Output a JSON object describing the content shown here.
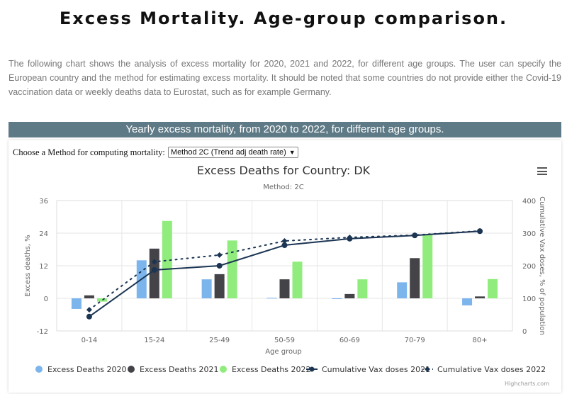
{
  "page": {
    "title": "Excess Mortality. Age-group comparison.",
    "intro": "The following chart shows the analysis of excess mortality for 2020, 2021 and 2022, for different age groups. The user can specify the European country and the method for estimating excess mortality. It should be noted that some countries do not provide either the Covid-19 vaccination data or weekly deaths data to Eurostat, such as for example Germany.",
    "banner": "Yearly excess mortality, from 2020 to 2022, for different age groups."
  },
  "controls": {
    "method_label": "Choose a Method for computing mortality:",
    "method_selected": "Method 2C (Trend adj death rate)",
    "menu_icon": "hamburger-menu-icon"
  },
  "credits": "Highcharts.com",
  "colors": {
    "series2020": "#7cb5ec",
    "series2021": "#434348",
    "series2022": "#90ed7d",
    "vax": "#1c3553"
  },
  "chart_data": {
    "type": "bar",
    "title": "Excess Deaths for Country: DK",
    "subtitle": "Method: 2C",
    "xlabel": "Age group",
    "ylabel": "Excess deaths, %",
    "y2label": "Cumulative Vax doses, % of population",
    "categories": [
      "0-14",
      "15-24",
      "25-49",
      "50-59",
      "60-69",
      "70-79",
      "80+"
    ],
    "ylim": [
      -12,
      36
    ],
    "yticks": [
      -12,
      0,
      12,
      24,
      36
    ],
    "y2lim": [
      0,
      400
    ],
    "y2ticks": [
      0,
      100,
      200,
      300,
      400
    ],
    "grid": true,
    "legend": "bottom",
    "series": [
      {
        "name": "Excess Deaths 2020",
        "type": "bar",
        "axis": "left",
        "values": [
          -3.9,
          14.0,
          7.0,
          0.2,
          0.0,
          5.9,
          -2.6
        ]
      },
      {
        "name": "Excess Deaths 2021",
        "type": "bar",
        "axis": "left",
        "values": [
          1.1,
          18.3,
          8.9,
          7.0,
          1.6,
          14.8,
          0.7
        ]
      },
      {
        "name": "Excess Deaths 2022",
        "type": "bar",
        "axis": "left",
        "values": [
          -1.2,
          28.5,
          21.3,
          13.5,
          7.0,
          23.3,
          7.1
        ]
      },
      {
        "name": "Cumulative Vax doses 2021",
        "type": "line",
        "axis": "right",
        "dash": "solid",
        "values": [
          44,
          187,
          200,
          263,
          283,
          293,
          306
        ]
      },
      {
        "name": "Cumulative Vax doses 2022",
        "type": "line",
        "axis": "right",
        "dash": "dot",
        "values": [
          65,
          212,
          233,
          276,
          287,
          294,
          307
        ]
      }
    ]
  }
}
